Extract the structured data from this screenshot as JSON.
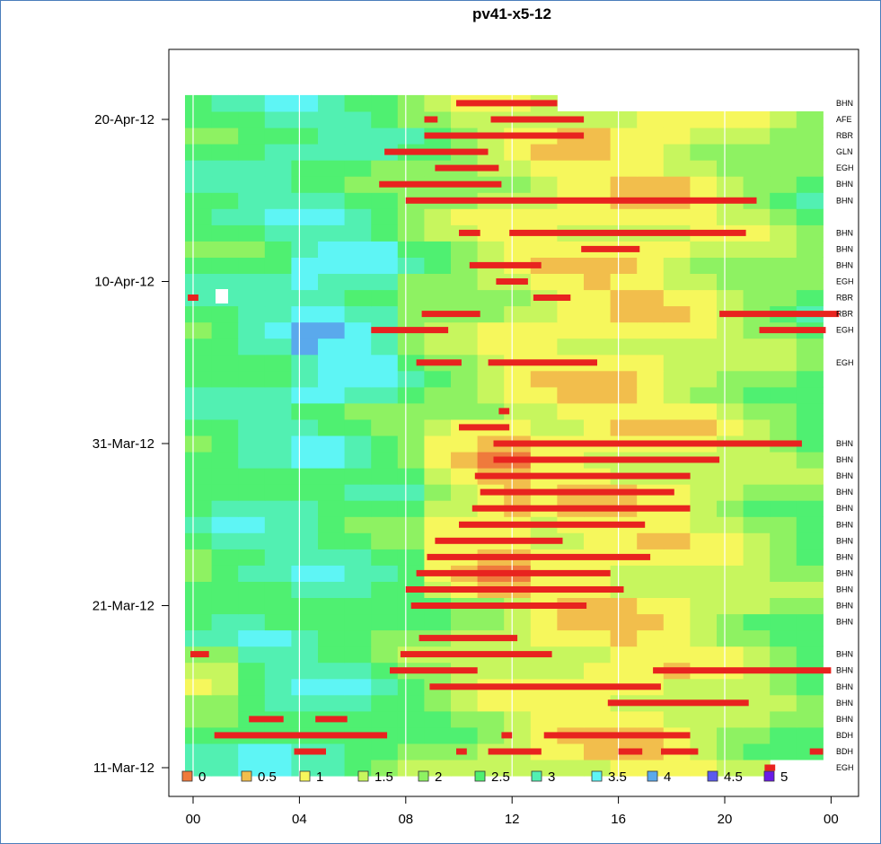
{
  "chart_data": {
    "type": "heatmap",
    "title": "pv41-x5-12",
    "xlabel": "",
    "ylabel": "",
    "x_range": [
      0,
      24
    ],
    "x_ticks": [
      "00",
      "04",
      "08",
      "12",
      "16",
      "20",
      "00"
    ],
    "x_tick_values": [
      0,
      4,
      8,
      12,
      16,
      20,
      24
    ],
    "y_range": [
      "11-Mar-12",
      "21-Apr-12"
    ],
    "y_ticks": [
      "20-Apr-12",
      "10-Apr-12",
      "31-Mar-12",
      "21-Mar-12",
      "11-Mar-12"
    ],
    "y_tick_values": [
      "2012-04-20",
      "2012-04-10",
      "2012-03-31",
      "2012-03-21",
      "2012-03-11"
    ],
    "vertical_gridlines_hours": [
      0,
      4,
      8,
      12,
      16,
      20
    ],
    "legend": {
      "placement": "bottom-left",
      "entries": [
        {
          "label": "0",
          "color": "#ef7a3c"
        },
        {
          "label": "0.5",
          "color": "#f2be4c"
        },
        {
          "label": "1",
          "color": "#f6f75c"
        },
        {
          "label": "1.5",
          "color": "#c7f65e"
        },
        {
          "label": "2",
          "color": "#8ef262"
        },
        {
          "label": "2.5",
          "color": "#4ff071"
        },
        {
          "label": "3",
          "color": "#52f0b2"
        },
        {
          "label": "3.5",
          "color": "#5ef5f5"
        },
        {
          "label": "4",
          "color": "#5aa9ec"
        },
        {
          "label": "4.5",
          "color": "#5a5aee"
        },
        {
          "label": "5",
          "color": "#6a1ae8"
        }
      ]
    },
    "station_labels": [
      {
        "date": "2012-04-21",
        "label": "BHN"
      },
      {
        "date": "2012-04-20",
        "label": "AFE"
      },
      {
        "date": "2012-04-19",
        "label": "RBR"
      },
      {
        "date": "2012-04-18",
        "label": "GLN"
      },
      {
        "date": "2012-04-17",
        "label": "EGH"
      },
      {
        "date": "2012-04-16",
        "label": "BHN"
      },
      {
        "date": "2012-04-15",
        "label": "BHN"
      },
      {
        "date": "2012-04-13",
        "label": "BHN"
      },
      {
        "date": "2012-04-12",
        "label": "BHN"
      },
      {
        "date": "2012-04-11",
        "label": "BHN"
      },
      {
        "date": "2012-04-10",
        "label": "EGH"
      },
      {
        "date": "2012-04-09",
        "label": "RBR"
      },
      {
        "date": "2012-04-08",
        "label": "RBR"
      },
      {
        "date": "2012-04-07",
        "label": "EGH"
      },
      {
        "date": "2012-04-05",
        "label": "EGH"
      },
      {
        "date": "2012-03-31",
        "label": "BHN"
      },
      {
        "date": "2012-03-30",
        "label": "BHN"
      },
      {
        "date": "2012-03-29",
        "label": "BHN"
      },
      {
        "date": "2012-03-28",
        "label": "BHN"
      },
      {
        "date": "2012-03-27",
        "label": "BHN"
      },
      {
        "date": "2012-03-26",
        "label": "BHN"
      },
      {
        "date": "2012-03-25",
        "label": "BHN"
      },
      {
        "date": "2012-03-24",
        "label": "BHN"
      },
      {
        "date": "2012-03-23",
        "label": "BHN"
      },
      {
        "date": "2012-03-22",
        "label": "BHN"
      },
      {
        "date": "2012-03-21",
        "label": "BHN"
      },
      {
        "date": "2012-03-20",
        "label": "BHN"
      },
      {
        "date": "2012-03-18",
        "label": "BHN"
      },
      {
        "date": "2012-03-17",
        "label": "BHN"
      },
      {
        "date": "2012-03-16",
        "label": "BHN"
      },
      {
        "date": "2012-03-15",
        "label": "BHN"
      },
      {
        "date": "2012-03-14",
        "label": "BHN"
      },
      {
        "date": "2012-03-13",
        "label": "BDH"
      },
      {
        "date": "2012-03-12",
        "label": "BDH"
      },
      {
        "date": "2012-03-11",
        "label": "EGH"
      }
    ],
    "event_bars": [
      {
        "date": "2012-04-21",
        "start": 9.9,
        "end": 13.7
      },
      {
        "date": "2012-04-20",
        "start": 8.7,
        "end": 9.2
      },
      {
        "date": "2012-04-20",
        "start": 11.2,
        "end": 14.7
      },
      {
        "date": "2012-04-19",
        "start": 8.7,
        "end": 14.7
      },
      {
        "date": "2012-04-18",
        "start": 7.2,
        "end": 11.1
      },
      {
        "date": "2012-04-17",
        "start": 9.1,
        "end": 11.5
      },
      {
        "date": "2012-04-16",
        "start": 7.0,
        "end": 11.6
      },
      {
        "date": "2012-04-15",
        "start": 8.0,
        "end": 21.2
      },
      {
        "date": "2012-04-13",
        "start": 10.0,
        "end": 10.8
      },
      {
        "date": "2012-04-13",
        "start": 11.9,
        "end": 20.8
      },
      {
        "date": "2012-04-12",
        "start": 14.6,
        "end": 16.8
      },
      {
        "date": "2012-04-11",
        "start": 10.4,
        "end": 13.1
      },
      {
        "date": "2012-04-10",
        "start": 11.4,
        "end": 12.6
      },
      {
        "date": "2012-04-09",
        "start": -0.2,
        "end": 0.2
      },
      {
        "date": "2012-04-09",
        "start": 12.8,
        "end": 14.2
      },
      {
        "date": "2012-04-08",
        "start": 8.6,
        "end": 10.8
      },
      {
        "date": "2012-04-08",
        "start": 19.8,
        "end": 24.3
      },
      {
        "date": "2012-04-07",
        "start": 6.7,
        "end": 9.6
      },
      {
        "date": "2012-04-07",
        "start": 21.3,
        "end": 23.8
      },
      {
        "date": "2012-04-05",
        "start": 8.4,
        "end": 10.1
      },
      {
        "date": "2012-04-05",
        "start": 11.1,
        "end": 15.2
      },
      {
        "date": "2012-04-02",
        "start": 11.5,
        "end": 11.9
      },
      {
        "date": "2012-04-01",
        "start": 10.0,
        "end": 11.9
      },
      {
        "date": "2012-03-31",
        "start": 11.3,
        "end": 22.9
      },
      {
        "date": "2012-03-30",
        "start": 11.3,
        "end": 19.8
      },
      {
        "date": "2012-03-29",
        "start": 10.6,
        "end": 18.7
      },
      {
        "date": "2012-03-28",
        "start": 10.8,
        "end": 18.1
      },
      {
        "date": "2012-03-27",
        "start": 10.5,
        "end": 18.7
      },
      {
        "date": "2012-03-26",
        "start": 10.0,
        "end": 17.0
      },
      {
        "date": "2012-03-25",
        "start": 9.1,
        "end": 13.9
      },
      {
        "date": "2012-03-24",
        "start": 8.8,
        "end": 17.2
      },
      {
        "date": "2012-03-23",
        "start": 8.4,
        "end": 15.7
      },
      {
        "date": "2012-03-22",
        "start": 8.0,
        "end": 16.2
      },
      {
        "date": "2012-03-21",
        "start": 8.2,
        "end": 14.8
      },
      {
        "date": "2012-03-19",
        "start": 8.5,
        "end": 12.2
      },
      {
        "date": "2012-03-18",
        "start": -0.1,
        "end": 0.6
      },
      {
        "date": "2012-03-18",
        "start": 7.8,
        "end": 13.5
      },
      {
        "date": "2012-03-17",
        "start": 7.4,
        "end": 10.7
      },
      {
        "date": "2012-03-17",
        "start": 17.3,
        "end": 24.0
      },
      {
        "date": "2012-03-16",
        "start": 8.9,
        "end": 17.6
      },
      {
        "date": "2012-03-15",
        "start": 15.6,
        "end": 20.9
      },
      {
        "date": "2012-03-14",
        "start": 2.1,
        "end": 3.4
      },
      {
        "date": "2012-03-14",
        "start": 4.6,
        "end": 5.8
      },
      {
        "date": "2012-03-13",
        "start": 0.8,
        "end": 7.3
      },
      {
        "date": "2012-03-13",
        "start": 11.6,
        "end": 12.0
      },
      {
        "date": "2012-03-13",
        "start": 13.2,
        "end": 18.7
      },
      {
        "date": "2012-03-12",
        "start": 3.8,
        "end": 5.0
      },
      {
        "date": "2012-03-12",
        "start": 9.9,
        "end": 10.3
      },
      {
        "date": "2012-03-12",
        "start": 11.1,
        "end": 13.1
      },
      {
        "date": "2012-03-12",
        "start": 16.0,
        "end": 16.9
      },
      {
        "date": "2012-03-12",
        "start": 17.6,
        "end": 19.0
      },
      {
        "date": "2012-03-12",
        "start": 23.2,
        "end": 23.7
      },
      {
        "date": "2012-03-11",
        "start": 21.5,
        "end": 21.9
      }
    ]
  }
}
